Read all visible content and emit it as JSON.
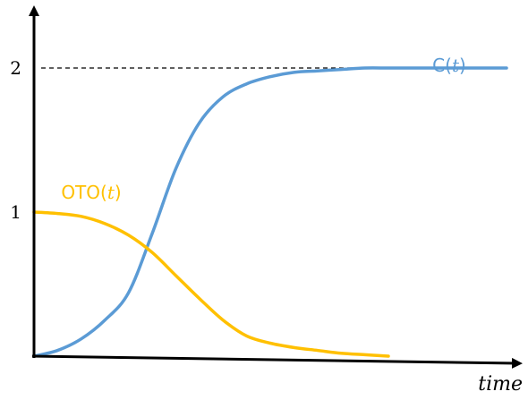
{
  "chart_data": {
    "type": "line",
    "title": "",
    "xlabel": "time",
    "ylabel": "",
    "xlim": [
      0,
      10
    ],
    "ylim": [
      0,
      2.4
    ],
    "yticks": [
      {
        "value": 1,
        "label": "1"
      },
      {
        "value": 2,
        "label": "2"
      }
    ],
    "grid": false,
    "legend": "none",
    "reference_lines": [
      {
        "y": 2,
        "style": "dashed",
        "color": "#000000"
      }
    ],
    "series": [
      {
        "name": "C(t)",
        "label_text": "C(",
        "label_var": "t",
        "label_close": ")",
        "color": "#5b9bd5",
        "x": [
          0,
          0.5,
          1.0,
          1.5,
          2.0,
          2.5,
          3.0,
          3.5,
          4.0,
          4.5,
          5.0,
          5.5,
          6.0,
          6.5,
          7.0,
          7.5,
          8.0,
          8.5,
          9.0,
          9.5,
          10.0
        ],
        "y": [
          0.0,
          0.04,
          0.12,
          0.25,
          0.44,
          0.85,
          1.3,
          1.62,
          1.8,
          1.89,
          1.94,
          1.97,
          1.98,
          1.99,
          2.0,
          2.0,
          2.0,
          2.0,
          2.0,
          2.0,
          2.0
        ]
      },
      {
        "name": "OTO(t)",
        "label_text": "OTO(",
        "label_var": "t",
        "label_close": ")",
        "color": "#ffc000",
        "x": [
          0,
          0.5,
          1.0,
          1.5,
          2.0,
          2.5,
          3.0,
          3.5,
          4.0,
          4.5,
          5.0,
          5.5,
          6.0,
          6.5,
          7.0,
          7.5
        ],
        "y": [
          1.0,
          0.99,
          0.97,
          0.92,
          0.84,
          0.72,
          0.56,
          0.4,
          0.25,
          0.14,
          0.09,
          0.06,
          0.04,
          0.02,
          0.01,
          0.0
        ]
      }
    ]
  }
}
